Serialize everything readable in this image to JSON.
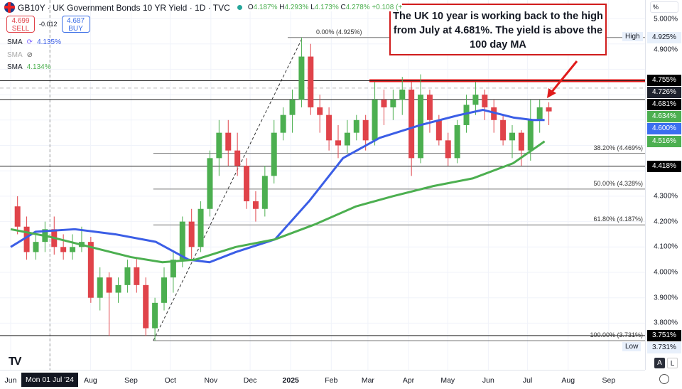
{
  "header": {
    "symbol_title": "GB10Y · UK Government Bonds 10 YR Yield · 1D · TVC",
    "open_label": "O",
    "open": "4.187%",
    "high_label": "H",
    "high": "4.293%",
    "low_label": "L",
    "low": "4.173%",
    "close_label": "C",
    "close": "4.278%",
    "change": "+0.108 (+"
  },
  "trade": {
    "sell_price": "4.699",
    "sell_label": "SELL",
    "spread": "-0.012",
    "buy_price": "4.687",
    "buy_label": "BUY"
  },
  "indicators": [
    {
      "name": "SMA",
      "value": "4.135%",
      "color": "#3b5ee6",
      "icon": "refresh-icon"
    },
    {
      "name": "SMA",
      "value": "",
      "icon": "eye-hidden-icon"
    },
    {
      "name": "SMA",
      "value": "4.134%",
      "color": "#4caf50"
    }
  ],
  "annotation": "The UK 10 year is working back to the high from July at 4.681%. The yield is above the 100 day MA",
  "price_axis": {
    "unit": "%",
    "ticks": [
      "5.000%",
      "4.900%",
      "4.300%",
      "4.200%",
      "4.100%",
      "4.000%",
      "3.900%",
      "3.800%"
    ],
    "tags": [
      {
        "label": "4.925%",
        "value": 4.925,
        "bg": "#e8f0fb",
        "fg": "#131722",
        "prefix": "High"
      },
      {
        "label": "4.755%",
        "value": 4.755,
        "bg": "#000000",
        "fg": "#ffffff"
      },
      {
        "label": "4.726%",
        "value": 4.726,
        "bg": "#1e222d",
        "fg": "#ffffff"
      },
      {
        "label": "4.681%",
        "value": 4.681,
        "bg": "#000000",
        "fg": "#ffffff"
      },
      {
        "label": "4.634%",
        "value": 4.634,
        "bg": "#4caf50",
        "fg": "#ffffff"
      },
      {
        "label": "4.600%",
        "value": 4.6,
        "bg": "#3b6ef0",
        "fg": "#ffffff"
      },
      {
        "label": "4.516%",
        "value": 4.516,
        "bg": "#4caf50",
        "fg": "#ffffff"
      },
      {
        "label": "4.418%",
        "value": 4.418,
        "bg": "#000000",
        "fg": "#ffffff"
      },
      {
        "label": "3.751%",
        "value": 3.751,
        "bg": "#000000",
        "fg": "#ffffff"
      },
      {
        "label": "3.731%",
        "value": 3.731,
        "bg": "#e8f0fb",
        "fg": "#131722",
        "prefix": "Low"
      }
    ],
    "auto_label": "A",
    "log_label": "L"
  },
  "time_axis": {
    "labels": [
      "Jun",
      "Aug",
      "Sep",
      "Oct",
      "Nov",
      "Dec",
      "2025",
      "Feb",
      "Mar",
      "Apr",
      "May",
      "Jun",
      "Jul",
      "Aug",
      "Sep"
    ],
    "crosshair_label": "Mon 01 Jul '24"
  },
  "fib_levels": [
    {
      "label": "0.00% (4.925%)",
      "value": 4.925
    },
    {
      "label": "38.20% (4.469%)",
      "value": 4.469
    },
    {
      "label": "50.00% (4.328%)",
      "value": 4.328
    },
    {
      "label": "61.80% (4.187%)",
      "value": 4.187
    },
    {
      "label": "100.00% (3.731%)",
      "value": 3.731
    }
  ],
  "chart_data": {
    "type": "candlestick",
    "title": "GB10Y · UK Government Bonds 10 YR Yield · 1D · TVC",
    "ylim": [
      3.68,
      5.05
    ],
    "colors": {
      "up": "#4caf50",
      "down": "#e0434a",
      "sma100": "#3b5ee6",
      "sma200": "#4caf50",
      "resistance": "#e01b1b"
    },
    "candles_weekly_approx": [
      [
        "2024-06-03",
        4.26,
        4.3,
        4.15,
        4.18
      ],
      [
        "2024-06-10",
        4.18,
        4.22,
        4.05,
        4.08
      ],
      [
        "2024-06-17",
        4.08,
        4.15,
        4.05,
        4.12
      ],
      [
        "2024-06-24",
        4.12,
        4.2,
        4.08,
        4.17
      ],
      [
        "2024-07-01",
        4.17,
        4.22,
        4.07,
        4.1
      ],
      [
        "2024-07-08",
        4.1,
        4.15,
        4.05,
        4.08
      ],
      [
        "2024-07-15",
        4.08,
        4.15,
        4.05,
        4.1
      ],
      [
        "2024-07-22",
        4.1,
        4.18,
        4.08,
        4.12
      ],
      [
        "2024-07-29",
        4.12,
        4.14,
        3.88,
        3.9
      ],
      [
        "2024-08-05",
        3.9,
        4.02,
        3.85,
        3.98
      ],
      [
        "2024-08-12",
        3.98,
        4.0,
        3.75,
        3.92
      ],
      [
        "2024-08-19",
        3.92,
        3.98,
        3.88,
        3.95
      ],
      [
        "2024-08-26",
        3.95,
        4.05,
        3.92,
        4.02
      ],
      [
        "2024-09-02",
        4.02,
        4.06,
        3.92,
        3.95
      ],
      [
        "2024-09-09",
        3.95,
        3.98,
        3.75,
        3.78
      ],
      [
        "2024-09-16",
        3.78,
        3.9,
        3.731,
        3.88
      ],
      [
        "2024-09-23",
        3.88,
        4.02,
        3.85,
        3.98
      ],
      [
        "2024-09-30",
        3.98,
        4.08,
        3.92,
        4.05
      ],
      [
        "2024-10-07",
        4.05,
        4.22,
        4.02,
        4.2
      ],
      [
        "2024-10-14",
        4.2,
        4.25,
        4.05,
        4.1
      ],
      [
        "2024-10-21",
        4.1,
        4.28,
        4.08,
        4.25
      ],
      [
        "2024-10-28",
        4.25,
        4.48,
        4.22,
        4.45
      ],
      [
        "2024-11-04",
        4.45,
        4.6,
        4.38,
        4.55
      ],
      [
        "2024-11-11",
        4.55,
        4.6,
        4.42,
        4.48
      ],
      [
        "2024-11-18",
        4.48,
        4.55,
        4.38,
        4.42
      ],
      [
        "2024-11-25",
        4.42,
        4.45,
        4.25,
        4.28
      ],
      [
        "2024-12-02",
        4.28,
        4.32,
        4.2,
        4.25
      ],
      [
        "2024-12-09",
        4.25,
        4.42,
        4.22,
        4.38
      ],
      [
        "2024-12-16",
        4.38,
        4.6,
        4.35,
        4.55
      ],
      [
        "2024-12-23",
        4.55,
        4.65,
        4.52,
        4.62
      ],
      [
        "2024-12-30",
        4.62,
        4.72,
        4.55,
        4.68
      ],
      [
        "2025-01-06",
        4.68,
        4.925,
        4.65,
        4.85
      ],
      [
        "2025-01-13",
        4.85,
        4.9,
        4.62,
        4.65
      ],
      [
        "2025-01-20",
        4.65,
        4.7,
        4.55,
        4.62
      ],
      [
        "2025-01-27",
        4.62,
        4.65,
        4.48,
        4.52
      ],
      [
        "2025-02-03",
        4.52,
        4.58,
        4.45,
        4.5
      ],
      [
        "2025-02-10",
        4.5,
        4.6,
        4.47,
        4.55
      ],
      [
        "2025-02-17",
        4.55,
        4.62,
        4.52,
        4.6
      ],
      [
        "2025-02-24",
        4.6,
        4.62,
        4.48,
        4.52
      ],
      [
        "2025-03-03",
        4.52,
        4.75,
        4.5,
        4.68
      ],
      [
        "2025-03-10",
        4.68,
        4.72,
        4.58,
        4.65
      ],
      [
        "2025-03-17",
        4.65,
        4.72,
        4.6,
        4.68
      ],
      [
        "2025-03-24",
        4.68,
        4.77,
        4.62,
        4.72
      ],
      [
        "2025-03-31",
        4.72,
        4.75,
        4.38,
        4.45
      ],
      [
        "2025-04-07",
        4.45,
        4.78,
        4.43,
        4.7
      ],
      [
        "2025-04-14",
        4.7,
        4.72,
        4.55,
        4.6
      ],
      [
        "2025-04-21",
        4.6,
        4.62,
        4.5,
        4.52
      ],
      [
        "2025-04-28",
        4.52,
        4.55,
        4.42,
        4.45
      ],
      [
        "2025-05-05",
        4.45,
        4.6,
        4.43,
        4.58
      ],
      [
        "2025-05-12",
        4.58,
        4.7,
        4.55,
        4.66
      ],
      [
        "2025-05-19",
        4.66,
        4.75,
        4.62,
        4.7
      ],
      [
        "2025-05-26",
        4.7,
        4.72,
        4.6,
        4.65
      ],
      [
        "2025-06-02",
        4.65,
        4.68,
        4.55,
        4.6
      ],
      [
        "2025-06-09",
        4.6,
        4.62,
        4.5,
        4.52
      ],
      [
        "2025-06-16",
        4.52,
        4.58,
        4.45,
        4.55
      ],
      [
        "2025-06-23",
        4.55,
        4.56,
        4.42,
        4.48
      ],
      [
        "2025-06-30",
        4.48,
        4.68,
        4.44,
        4.6
      ],
      [
        "2025-07-07",
        4.6,
        4.68,
        4.55,
        4.65
      ],
      [
        "2025-07-14",
        4.65,
        4.67,
        4.58,
        4.634
      ]
    ],
    "sma100": [
      [
        "2024-06-01",
        4.1
      ],
      [
        "2024-06-20",
        4.16
      ],
      [
        "2024-07-20",
        4.17
      ],
      [
        "2024-08-20",
        4.15
      ],
      [
        "2024-09-20",
        4.12
      ],
      [
        "2024-10-15",
        4.05
      ],
      [
        "2024-10-31",
        4.04
      ],
      [
        "2024-11-20",
        4.08
      ],
      [
        "2024-12-20",
        4.13
      ],
      [
        "2025-01-15",
        4.28
      ],
      [
        "2025-02-10",
        4.45
      ],
      [
        "2025-03-10",
        4.53
      ],
      [
        "2025-04-10",
        4.58
      ],
      [
        "2025-05-10",
        4.62
      ],
      [
        "2025-05-28",
        4.64
      ],
      [
        "2025-06-20",
        4.61
      ],
      [
        "2025-07-05",
        4.6
      ],
      [
        "2025-07-14",
        4.6
      ]
    ],
    "sma200": [
      [
        "2024-06-01",
        4.17
      ],
      [
        "2024-07-01",
        4.14
      ],
      [
        "2024-08-01",
        4.1
      ],
      [
        "2024-09-01",
        4.06
      ],
      [
        "2024-09-25",
        4.04
      ],
      [
        "2024-10-20",
        4.05
      ],
      [
        "2024-11-20",
        4.1
      ],
      [
        "2024-12-20",
        4.13
      ],
      [
        "2025-01-20",
        4.19
      ],
      [
        "2025-02-20",
        4.26
      ],
      [
        "2025-03-20",
        4.3
      ],
      [
        "2025-04-20",
        4.34
      ],
      [
        "2025-05-20",
        4.37
      ],
      [
        "2025-06-20",
        4.43
      ],
      [
        "2025-07-14",
        4.516
      ]
    ],
    "horizontal_lines": [
      {
        "value": 4.755,
        "style": "solid-red-thick"
      },
      {
        "value": 4.755,
        "style": "solid"
      },
      {
        "value": 4.726,
        "style": "dashed"
      },
      {
        "value": 4.681,
        "style": "solid"
      },
      {
        "value": 4.418,
        "style": "solid"
      },
      {
        "value": 3.751,
        "style": "solid"
      }
    ],
    "trend_line": [
      [
        "2024-09-18",
        3.731
      ],
      [
        "2025-01-10",
        4.925
      ]
    ]
  }
}
